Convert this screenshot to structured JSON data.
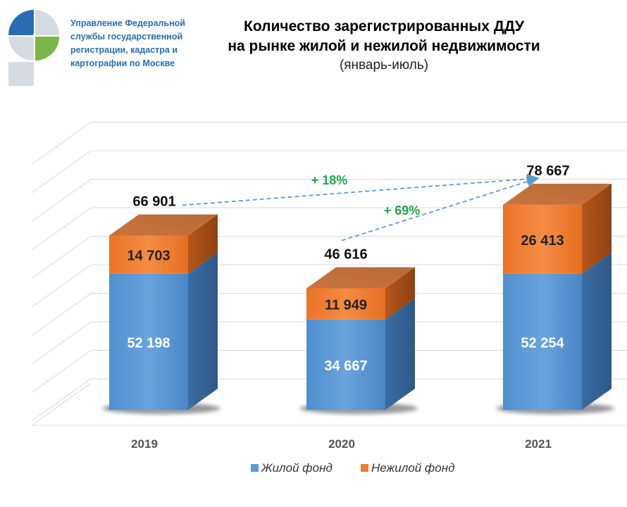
{
  "header": {
    "agency_lines": [
      "Управление Федеральной",
      "службы государственной",
      "регистрации, кадастра и",
      "картографии по Москве"
    ],
    "title_lines": [
      "Количество зарегистрированных ДДУ",
      "на рынке жилой и нежилой недвижимости"
    ],
    "subtitle": "(январь-июль)"
  },
  "logo": {
    "icon": "rosreestr-logo",
    "colors": [
      "#2a6db2",
      "#7ab648",
      "#d6dbe2"
    ]
  },
  "chart_data": {
    "type": "bar",
    "stacked": true,
    "three_d": true,
    "categories": [
      "2019",
      "2020",
      "2021"
    ],
    "series": [
      {
        "name": "Жилой фонд",
        "values": [
          52198,
          34667,
          52254
        ],
        "labels": [
          "52 198",
          "34 667",
          "52 254"
        ],
        "color": "#5b9bd5"
      },
      {
        "name": "Нежилой фонд",
        "values": [
          14703,
          11949,
          26413
        ],
        "labels": [
          "14 703",
          "11 949",
          "26 413"
        ],
        "color": "#ed7d31"
      }
    ],
    "totals": [
      66901,
      46616,
      78667
    ],
    "total_labels": [
      "66 901",
      "46 616",
      "78 667"
    ],
    "growth_annotations": [
      {
        "text": "+ 18%",
        "from": "2019",
        "to": "2021",
        "color": "#1aa84a"
      },
      {
        "text": "+ 69%",
        "from": "2020",
        "to": "2021",
        "color": "#1aa84a"
      }
    ],
    "ylim": [
      0,
      100000
    ],
    "grid": true,
    "legend_position": "bottom"
  }
}
